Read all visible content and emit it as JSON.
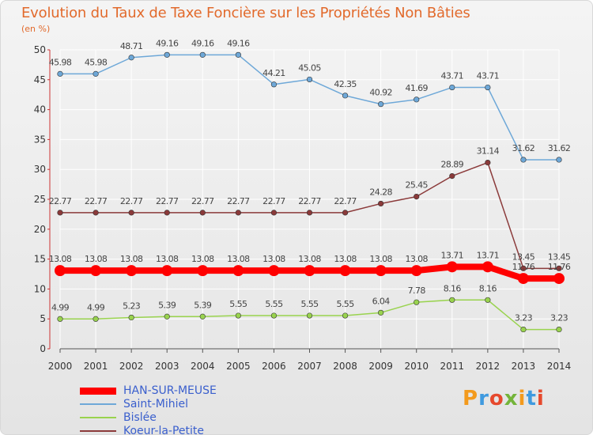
{
  "header": {
    "title": "Evolution du Taux de Taxe Foncière sur les Propriétés Non Bâties",
    "unit": "(en %)"
  },
  "brand": {
    "name": "Proxiti"
  },
  "chart_data": {
    "type": "line",
    "title": "Evolution du Taux de Taxe Foncière sur les Propriétés Non Bâties",
    "ylabel": "(en %)",
    "xlabel": "",
    "ylim": [
      0,
      50
    ],
    "yticks": [
      0,
      5,
      10,
      15,
      20,
      25,
      30,
      35,
      40,
      45,
      50
    ],
    "grid": true,
    "legend_position": "bottom-left",
    "categories": [
      "2000",
      "2001",
      "2002",
      "2003",
      "2004",
      "2005",
      "2006",
      "2007",
      "2008",
      "2009",
      "2010",
      "2011",
      "2012",
      "2013",
      "2014"
    ],
    "series": [
      {
        "name": "HAN-SUR-MEUSE",
        "color": "#ff0000",
        "highlight": true,
        "values": [
          13.08,
          13.08,
          13.08,
          13.08,
          13.08,
          13.08,
          13.08,
          13.08,
          13.08,
          13.08,
          13.08,
          13.71,
          13.71,
          11.76,
          11.76
        ],
        "labels": [
          "13.08",
          "13.08",
          "13.08",
          "13.08",
          "13.08",
          "13.08",
          "13.08",
          "13.08",
          "13.08",
          "13.08",
          "13.08",
          "13.71",
          "13.71",
          "11.76",
          "11.76"
        ]
      },
      {
        "name": "Saint-Mihiel",
        "color": "#6ea8d8",
        "values": [
          45.98,
          45.98,
          48.71,
          49.16,
          49.16,
          49.16,
          44.21,
          45.05,
          42.35,
          40.92,
          41.69,
          43.71,
          43.71,
          31.62,
          31.62
        ],
        "labels": [
          "45.98",
          "45.98",
          "48.71",
          "49.16",
          "49.16",
          "49.16",
          "44.21",
          "45.05",
          "42.35",
          "40.92",
          "41.69",
          "43.71",
          "43.71",
          "31.62",
          "31.62"
        ]
      },
      {
        "name": "Bislée",
        "color": "#99d34e",
        "values": [
          4.99,
          4.99,
          5.23,
          5.39,
          5.39,
          5.55,
          5.55,
          5.55,
          5.55,
          6.04,
          7.78,
          8.16,
          8.16,
          3.23,
          3.23
        ],
        "labels": [
          "4.99",
          "4.99",
          "5.23",
          "5.39",
          "5.39",
          "5.55",
          "5.55",
          "5.55",
          "5.55",
          "6.04",
          "7.78",
          "8.16",
          "8.16",
          "3.23",
          "3.23"
        ]
      },
      {
        "name": "Koeur-la-Petite",
        "color": "#8b3a3a",
        "values": [
          22.77,
          22.77,
          22.77,
          22.77,
          22.77,
          22.77,
          22.77,
          22.77,
          22.77,
          24.28,
          25.45,
          28.89,
          31.14,
          13.45,
          13.45
        ],
        "labels": [
          "22.77",
          "22.77",
          "22.77",
          "22.77",
          "22.77",
          "22.77",
          "22.77",
          "22.77",
          "22.77",
          "24.28",
          "25.45",
          "28.89",
          "31.14",
          "13.45",
          "13.45"
        ]
      }
    ]
  }
}
